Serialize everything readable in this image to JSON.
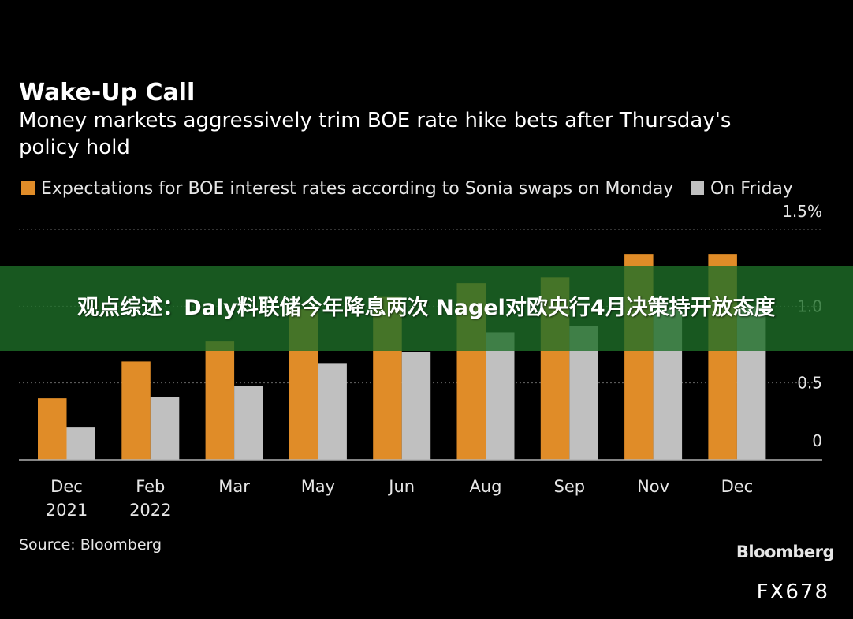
{
  "headline": "观点综述：Daly料联储今年降息两次 Nagel对欧央行4月决策持开放态度",
  "colors": {
    "monday": "#e08c28",
    "friday": "#c0c0c0",
    "background": "#000000",
    "gridline": "#666666",
    "banner": "#1e6e28"
  },
  "chart_data": {
    "type": "bar",
    "title": "Wake-Up Call",
    "subtitle_lines": [
      "Money markets aggressively trim BOE rate hike bets after Thursday's",
      "policy hold"
    ],
    "categories": [
      {
        "line1": "Dec",
        "line2": "2021"
      },
      {
        "line1": "Feb",
        "line2": "2022"
      },
      {
        "line1": "Mar",
        "line2": ""
      },
      {
        "line1": "May",
        "line2": ""
      },
      {
        "line1": "Jun",
        "line2": ""
      },
      {
        "line1": "Aug",
        "line2": ""
      },
      {
        "line1": "Sep",
        "line2": ""
      },
      {
        "line1": "Nov",
        "line2": ""
      },
      {
        "line1": "Dec",
        "line2": ""
      }
    ],
    "series": [
      {
        "name": "Expectations for BOE interest rates according to Sonia swaps on Monday",
        "color": "#e08c28",
        "values": [
          0.4,
          0.64,
          0.77,
          0.98,
          1.06,
          1.15,
          1.19,
          1.34,
          1.34
        ]
      },
      {
        "name": "On Friday",
        "color": "#c0c0c0",
        "values": [
          0.21,
          0.41,
          0.48,
          0.63,
          0.7,
          0.83,
          0.87,
          0.98,
          1.0
        ]
      }
    ],
    "y_ticks": [
      {
        "value": 0,
        "label": "0"
      },
      {
        "value": 0.5,
        "label": "0.5"
      },
      {
        "value": 1.0,
        "label": "1.0"
      },
      {
        "value": 1.5,
        "label": "1.5%"
      }
    ],
    "ylim": [
      0,
      1.5
    ],
    "grid": true,
    "legend_position": "top-left",
    "source": "Source: Bloomberg",
    "brand": "Bloomberg",
    "watermark": "FX678"
  }
}
